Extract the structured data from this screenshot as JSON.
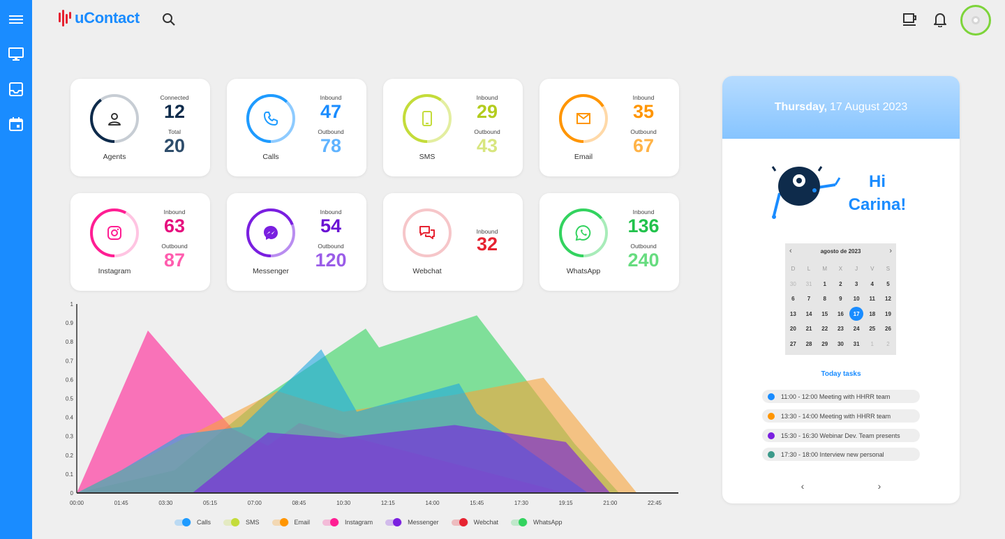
{
  "app": {
    "name": "uContact"
  },
  "colors": {
    "brand": "#1a8cff",
    "calls": "#1e9bff",
    "sms": "#c4dc3a",
    "email": "#ff9500",
    "instagram": "#ff1e93",
    "messenger": "#7a1fe0",
    "webchat": "#e62331",
    "whatsapp": "#33d35f"
  },
  "cards": [
    {
      "key": "agents",
      "label": "Agents",
      "icon": "person-icon",
      "cap1": "Connected",
      "val1": "12",
      "cap2": "Total",
      "val2": "20",
      "c1": "#0e2b4b",
      "c2": "#2e4d6b",
      "ring": "#0e2b4b",
      "ringBg": "#c7cdd4",
      "ring_fraction": 0.6
    },
    {
      "key": "calls",
      "label": "Calls",
      "icon": "phone-icon",
      "cap1": "Inbound",
      "val1": "47",
      "cap2": "Outbound",
      "val2": "78",
      "c1": "#1a8cff",
      "c2": "#5fb3ff",
      "ring": "#1e9bff",
      "ringBg": "#8ecbff",
      "ring_fraction": 0.38
    },
    {
      "key": "sms",
      "label": "SMS",
      "icon": "mobile-icon",
      "cap1": "Inbound",
      "val1": "29",
      "cap2": "Outbound",
      "val2": "43",
      "c1": "#b3cc1e",
      "c2": "#d8e67f",
      "ring": "#c4dc3a",
      "ringBg": "#e3eea0",
      "ring_fraction": 0.4
    },
    {
      "key": "email",
      "label": "Email",
      "icon": "envelope-icon",
      "cap1": "Inbound",
      "val1": "35",
      "cap2": "Outbound",
      "val2": "67",
      "c1": "#ff9500",
      "c2": "#ffb347",
      "ring": "#ff9500",
      "ringBg": "#ffd9a8",
      "ring_fraction": 0.34
    },
    {
      "key": "instagram",
      "label": "Instagram",
      "icon": "instagram-icon",
      "cap1": "Inbound",
      "val1": "63",
      "cap2": "Outbound",
      "val2": "87",
      "c1": "#e6107e",
      "c2": "#ff5cae",
      "ring": "#ff1e93",
      "ringBg": "#ffc4e2",
      "ring_fraction": 0.42
    },
    {
      "key": "messenger",
      "label": "Messenger",
      "icon": "messenger-icon",
      "cap1": "Inbound",
      "val1": "54",
      "cap2": "Outbound",
      "val2": "120",
      "c1": "#6a12d4",
      "c2": "#9a5ce8",
      "ring": "#7a1fe0",
      "ringBg": "#b98df0",
      "ring_fraction": 0.31
    },
    {
      "key": "webchat",
      "label": "Webchat",
      "icon": "chat-icon",
      "cap1": "Inbound",
      "val1": "32",
      "cap2": "",
      "val2": "",
      "c1": "#e62331",
      "c2": "#e62331",
      "ring": "#e62331",
      "ringBg": "#f6c6c9",
      "ring_fraction": 1.0
    },
    {
      "key": "whatsapp",
      "label": "WhatsApp",
      "icon": "whatsapp-icon",
      "cap1": "Inbound",
      "val1": "136",
      "cap2": "Outbound",
      "val2": "240",
      "c1": "#22c24c",
      "c2": "#66dc7f",
      "ring": "#33d35f",
      "ringBg": "#a8ecb9",
      "ring_fraction": 0.36
    }
  ],
  "chart_data": {
    "type": "area",
    "x": [
      "00:00",
      "01:45",
      "03:30",
      "05:15",
      "07:00",
      "08:45",
      "10:30",
      "12:15",
      "14:00",
      "15:45",
      "17:30",
      "19:15",
      "21:00",
      "22:45"
    ],
    "ylim": [
      0,
      1
    ],
    "yticks": [
      "0",
      "0.1",
      "0.2",
      "0.3",
      "0.4",
      "0.5",
      "0.6",
      "0.7",
      "0.8",
      "0.9",
      "1"
    ],
    "grid": false,
    "series": [
      {
        "name": "Calls",
        "color": "#1ea6e0",
        "points": [
          [
            0,
            0
          ],
          [
            1,
            0.12
          ],
          [
            2.35,
            0.31
          ],
          [
            3.7,
            0.35
          ],
          [
            5.5,
            0.76
          ],
          [
            6.3,
            0.43
          ],
          [
            8.6,
            0.58
          ],
          [
            9.0,
            0.42
          ],
          [
            11.5,
            0
          ]
        ]
      },
      {
        "name": "SMS",
        "color": "#c4dc3a",
        "points": [
          [
            0,
            0
          ],
          [
            11.5,
            0
          ]
        ]
      },
      {
        "name": "Email",
        "color": "#f6a33a",
        "points": [
          [
            0,
            0
          ],
          [
            4.5,
            0.54
          ],
          [
            6.0,
            0.43
          ],
          [
            8.5,
            0.52
          ],
          [
            10.5,
            0.61
          ],
          [
            12.6,
            0
          ]
        ]
      },
      {
        "name": "Instagram",
        "color": "#ff1e93",
        "points": [
          [
            0,
            0
          ],
          [
            1.6,
            0.86
          ],
          [
            3.5,
            0.34
          ],
          [
            4.3,
            0.25
          ],
          [
            5.0,
            0.37
          ],
          [
            11.0,
            0
          ]
        ]
      },
      {
        "name": "Messenger",
        "color": "#7a1fe0",
        "points": [
          [
            0.5,
            0
          ],
          [
            2.6,
            0
          ],
          [
            4.3,
            0.32
          ],
          [
            5.9,
            0.29
          ],
          [
            8.5,
            0.36
          ],
          [
            11.0,
            0.27
          ],
          [
            12.0,
            0
          ]
        ]
      },
      {
        "name": "Webchat",
        "color": "#e62331",
        "points": [
          [
            0,
            0
          ],
          [
            11.5,
            0
          ]
        ]
      },
      {
        "name": "WhatsApp",
        "color": "#33d35f",
        "points": [
          [
            0,
            0
          ],
          [
            2.2,
            0.12
          ],
          [
            4.1,
            0.49
          ],
          [
            6.5,
            0.87
          ],
          [
            6.8,
            0.77
          ],
          [
            9.0,
            0.94
          ],
          [
            11.2,
            0.26
          ],
          [
            12.2,
            0
          ]
        ]
      }
    ]
  },
  "legend": [
    {
      "label": "Calls",
      "color": "#1e9bff"
    },
    {
      "label": "SMS",
      "color": "#c4dc3a"
    },
    {
      "label": "Email",
      "color": "#ff9500"
    },
    {
      "label": "Instagram",
      "color": "#ff1e93"
    },
    {
      "label": "Messenger",
      "color": "#7a1fe0"
    },
    {
      "label": "Webchat",
      "color": "#e62331"
    },
    {
      "label": "WhatsApp",
      "color": "#33d35f"
    }
  ],
  "panel": {
    "day": "Thursday,",
    "date": "17 August 2023",
    "greeting_line1": "Hi",
    "greeting_line2": "Carina!",
    "calendar": {
      "month_label": "agosto de 2023",
      "weekdays": [
        "D",
        "L",
        "M",
        "X",
        "J",
        "V",
        "S"
      ],
      "weeks": [
        [
          "30",
          "31",
          "1",
          "2",
          "3",
          "4",
          "5"
        ],
        [
          "6",
          "7",
          "8",
          "9",
          "10",
          "11",
          "12"
        ],
        [
          "13",
          "14",
          "15",
          "16",
          "17",
          "18",
          "19"
        ],
        [
          "20",
          "21",
          "22",
          "23",
          "24",
          "25",
          "26"
        ],
        [
          "27",
          "28",
          "29",
          "30",
          "31",
          "1",
          "2"
        ]
      ],
      "selected": "17"
    },
    "tasks_title": "Today tasks",
    "tasks": [
      {
        "text": "11:00 - 12:00 Meeting with HHRR team",
        "color": "#1a8cff"
      },
      {
        "text": "13:30 - 14:00 Meeting with HHRR team",
        "color": "#ff9500"
      },
      {
        "text": "15:30 - 16:30 Webinar Dev. Team presents",
        "color": "#7a1fe0"
      },
      {
        "text": "17:30 - 18:00 Interview new personal",
        "color": "#3c9a8a"
      }
    ]
  }
}
